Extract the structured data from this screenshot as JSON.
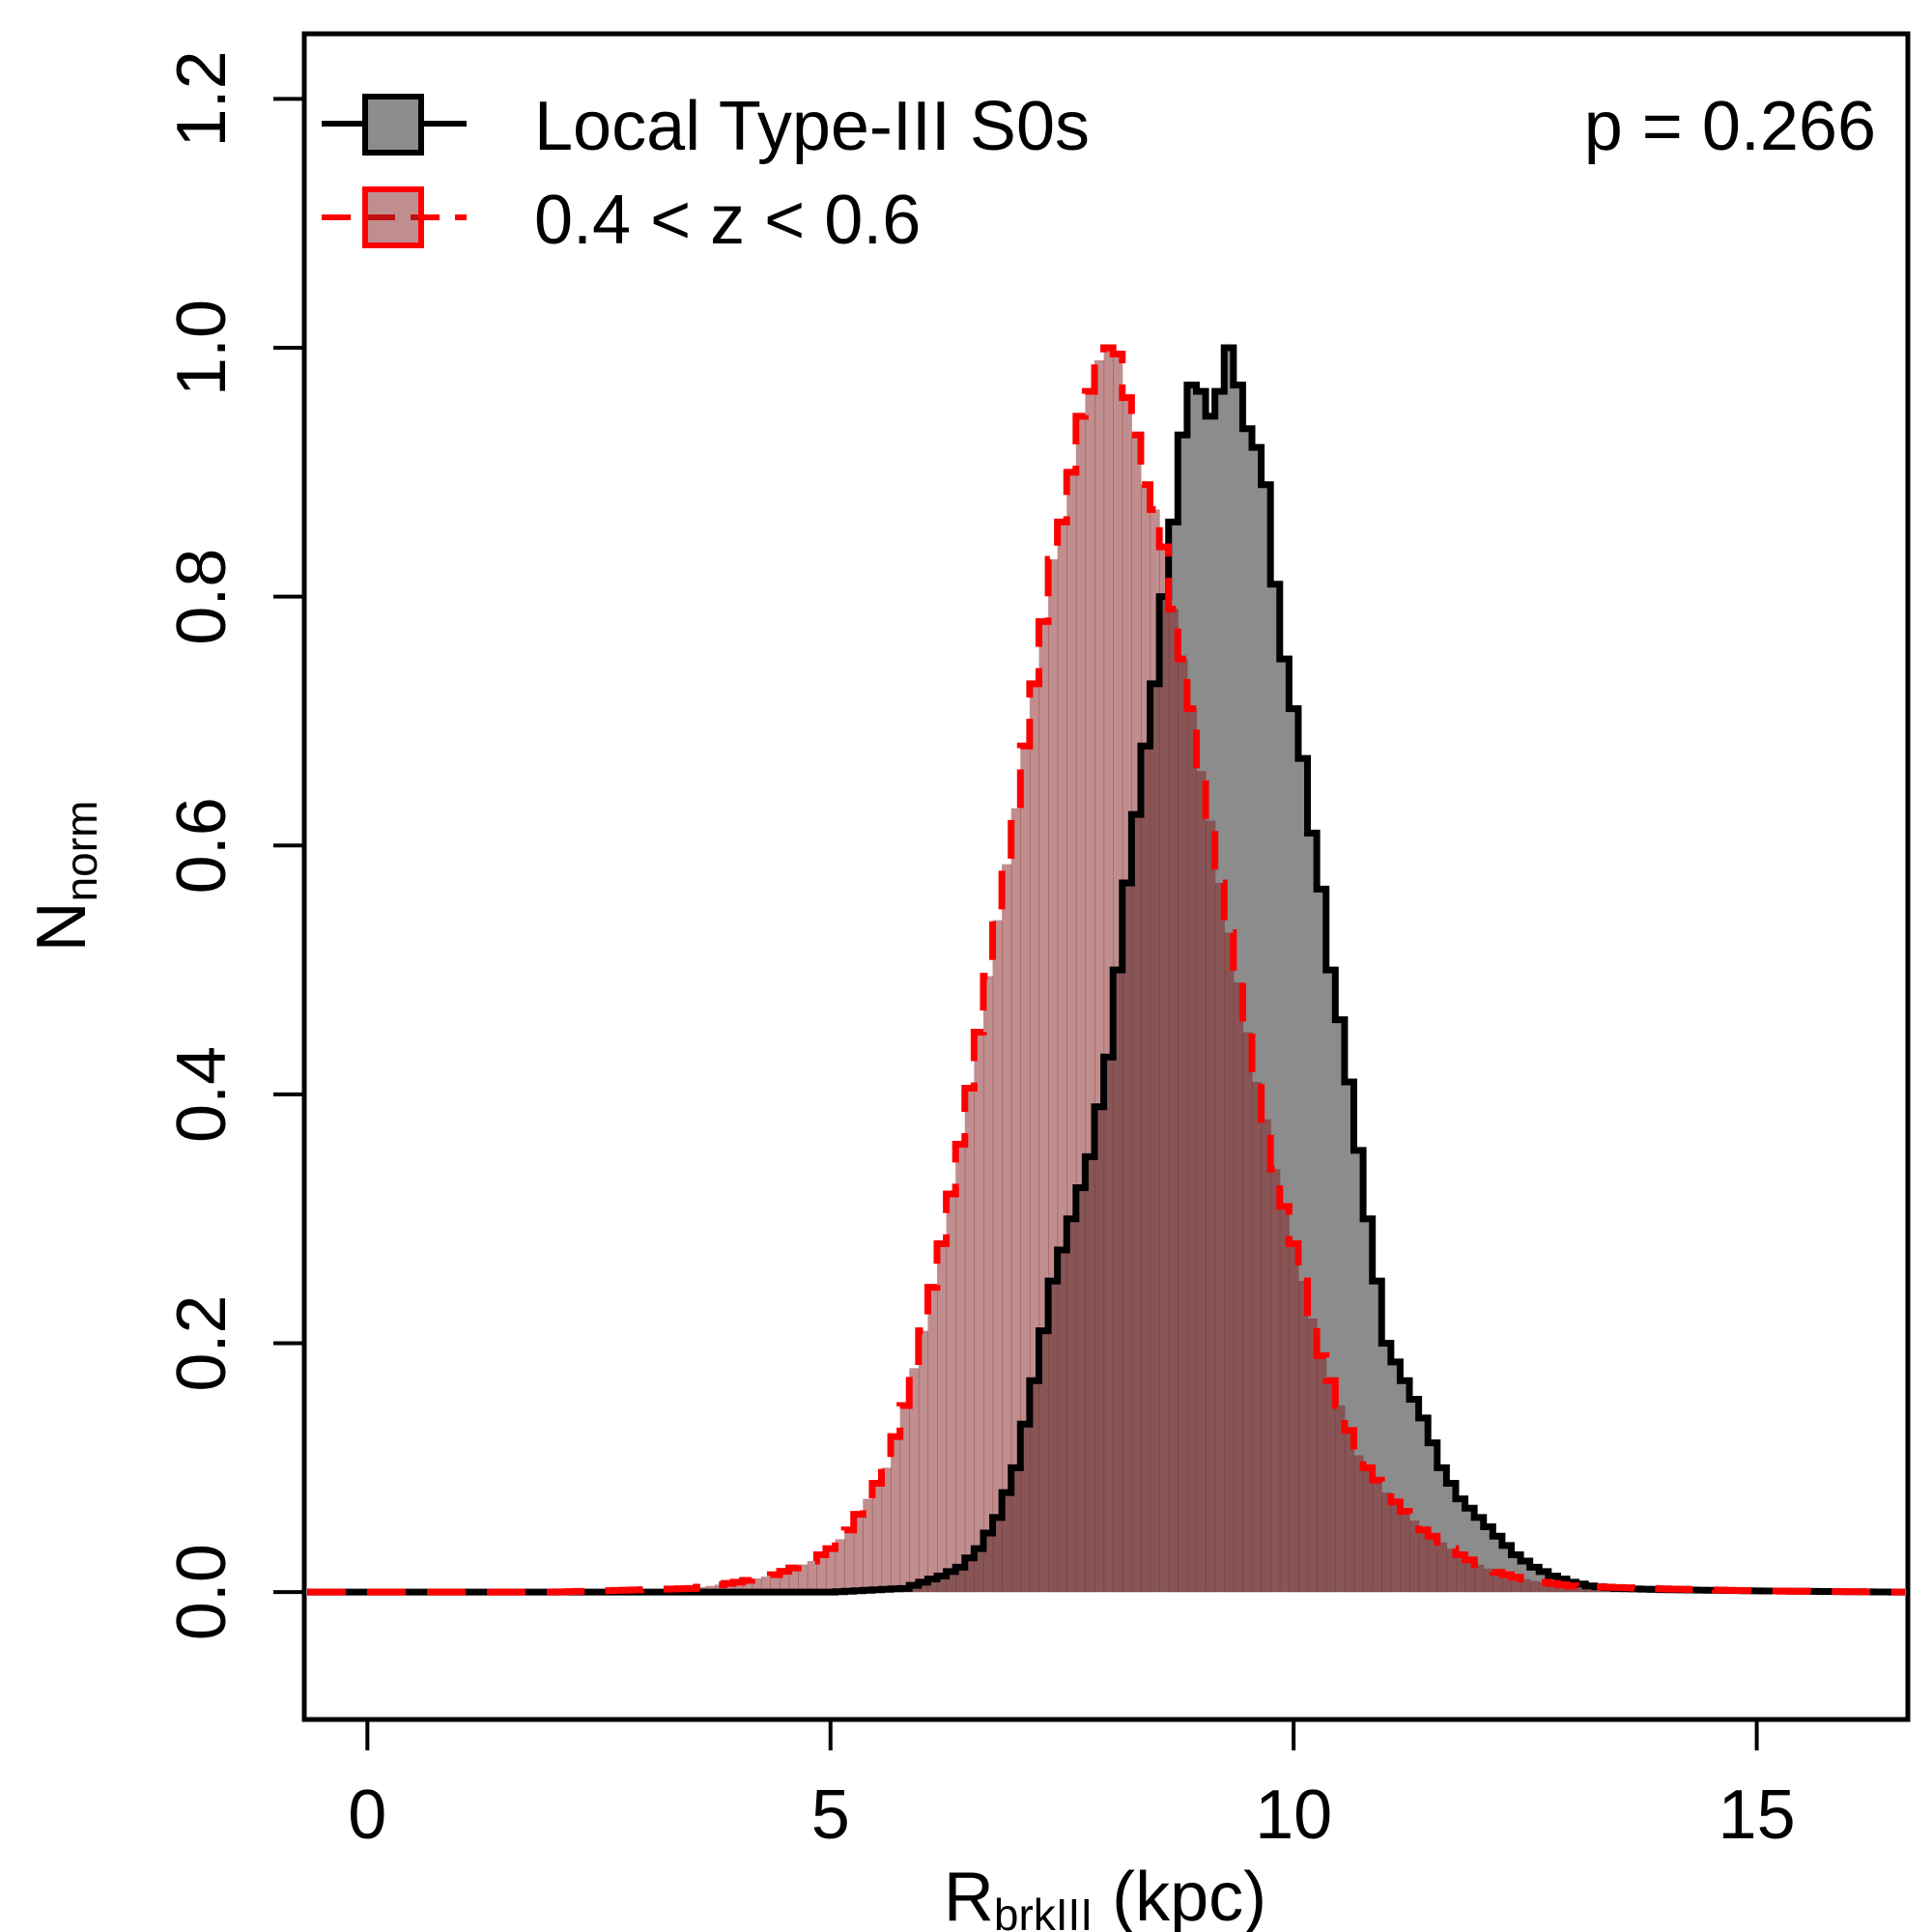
{
  "chart_data": {
    "type": "histogram",
    "xlabel": {
      "main": "R",
      "sub": "brkIII",
      "rest": " (kpc)"
    },
    "ylabel": {
      "main": "N",
      "sub": "norm"
    },
    "xlim": [
      -0.65,
      16.6
    ],
    "ylim": [
      -0.1,
      1.25
    ],
    "x_ticks": [
      0,
      5,
      10,
      15
    ],
    "y_ticks": [
      0.0,
      0.2,
      0.4,
      0.6,
      0.8,
      1.0,
      1.2
    ],
    "x_tick_labels": [
      "0",
      "5",
      "10",
      "15"
    ],
    "y_tick_labels": [
      "0.0",
      "0.2",
      "0.4",
      "0.6",
      "0.8",
      "1.0",
      "1.2"
    ],
    "annotation": "p = 0.266",
    "legend_position": "top-left",
    "bin_width": 0.1,
    "series": [
      {
        "name": "Local Type-III S0s",
        "line_color": "#000000",
        "fill_color": "#8c8c8c",
        "line_style": "solid",
        "points": [
          [
            -0.65,
            0.0
          ],
          [
            5.0,
            0.0
          ],
          [
            5.8,
            0.003
          ],
          [
            6.0,
            0.008
          ],
          [
            6.2,
            0.013
          ],
          [
            6.4,
            0.02
          ],
          [
            6.6,
            0.035
          ],
          [
            6.8,
            0.06
          ],
          [
            7.0,
            0.1
          ],
          [
            7.2,
            0.17
          ],
          [
            7.4,
            0.25
          ],
          [
            7.6,
            0.3
          ],
          [
            7.8,
            0.35
          ],
          [
            8.0,
            0.43
          ],
          [
            8.2,
            0.57
          ],
          [
            8.4,
            0.68
          ],
          [
            8.5,
            0.73
          ],
          [
            8.6,
            0.8
          ],
          [
            8.7,
            0.86
          ],
          [
            8.8,
            0.93
          ],
          [
            8.9,
            0.97
          ],
          [
            9.0,
            0.965
          ],
          [
            9.1,
            0.945
          ],
          [
            9.2,
            0.965
          ],
          [
            9.3,
            1.0
          ],
          [
            9.4,
            0.97
          ],
          [
            9.5,
            0.935
          ],
          [
            9.6,
            0.92
          ],
          [
            9.7,
            0.89
          ],
          [
            9.8,
            0.81
          ],
          [
            9.9,
            0.75
          ],
          [
            10.0,
            0.71
          ],
          [
            10.1,
            0.67
          ],
          [
            10.2,
            0.61
          ],
          [
            10.3,
            0.565
          ],
          [
            10.4,
            0.5
          ],
          [
            10.5,
            0.46
          ],
          [
            10.6,
            0.41
          ],
          [
            10.7,
            0.355
          ],
          [
            10.8,
            0.3
          ],
          [
            10.9,
            0.25
          ],
          [
            11.0,
            0.2
          ],
          [
            11.2,
            0.17
          ],
          [
            11.4,
            0.14
          ],
          [
            11.6,
            0.1
          ],
          [
            11.8,
            0.075
          ],
          [
            12.0,
            0.06
          ],
          [
            12.2,
            0.045
          ],
          [
            12.4,
            0.03
          ],
          [
            12.6,
            0.02
          ],
          [
            12.8,
            0.013
          ],
          [
            13.0,
            0.008
          ],
          [
            13.2,
            0.005
          ],
          [
            13.5,
            0.003
          ],
          [
            14.0,
            0.002
          ],
          [
            15.0,
            0.001
          ],
          [
            16.6,
            0.0
          ]
        ]
      },
      {
        "name": "0.4 < z < 0.6",
        "line_color": "#ff0000",
        "fill_color": "rgba(130,30,30,0.5)",
        "line_style": "dashed",
        "points": [
          [
            -0.65,
            0.0
          ],
          [
            2.0,
            0.0
          ],
          [
            3.0,
            0.002
          ],
          [
            3.5,
            0.003
          ],
          [
            4.0,
            0.008
          ],
          [
            4.4,
            0.014
          ],
          [
            4.8,
            0.025
          ],
          [
            5.0,
            0.035
          ],
          [
            5.2,
            0.05
          ],
          [
            5.4,
            0.075
          ],
          [
            5.6,
            0.1
          ],
          [
            5.8,
            0.15
          ],
          [
            6.0,
            0.21
          ],
          [
            6.2,
            0.28
          ],
          [
            6.4,
            0.36
          ],
          [
            6.6,
            0.45
          ],
          [
            6.8,
            0.54
          ],
          [
            7.0,
            0.63
          ],
          [
            7.2,
            0.73
          ],
          [
            7.4,
            0.83
          ],
          [
            7.5,
            0.86
          ],
          [
            7.6,
            0.9
          ],
          [
            7.7,
            0.945
          ],
          [
            7.8,
            0.965
          ],
          [
            7.9,
            0.99
          ],
          [
            8.0,
            1.0
          ],
          [
            8.1,
            0.995
          ],
          [
            8.2,
            0.96
          ],
          [
            8.3,
            0.93
          ],
          [
            8.4,
            0.89
          ],
          [
            8.5,
            0.87
          ],
          [
            8.6,
            0.84
          ],
          [
            8.7,
            0.79
          ],
          [
            8.8,
            0.75
          ],
          [
            8.9,
            0.71
          ],
          [
            9.0,
            0.66
          ],
          [
            9.1,
            0.62
          ],
          [
            9.2,
            0.57
          ],
          [
            9.3,
            0.53
          ],
          [
            9.4,
            0.49
          ],
          [
            9.5,
            0.45
          ],
          [
            9.6,
            0.41
          ],
          [
            9.7,
            0.38
          ],
          [
            9.8,
            0.34
          ],
          [
            9.9,
            0.31
          ],
          [
            10.0,
            0.28
          ],
          [
            10.1,
            0.25
          ],
          [
            10.2,
            0.22
          ],
          [
            10.3,
            0.19
          ],
          [
            10.4,
            0.17
          ],
          [
            10.5,
            0.15
          ],
          [
            10.6,
            0.13
          ],
          [
            10.7,
            0.11
          ],
          [
            10.8,
            0.1
          ],
          [
            10.9,
            0.09
          ],
          [
            11.0,
            0.08
          ],
          [
            11.2,
            0.065
          ],
          [
            11.4,
            0.05
          ],
          [
            11.6,
            0.04
          ],
          [
            11.8,
            0.03
          ],
          [
            12.0,
            0.022
          ],
          [
            12.2,
            0.016
          ],
          [
            12.4,
            0.012
          ],
          [
            12.6,
            0.009
          ],
          [
            12.8,
            0.007
          ],
          [
            13.0,
            0.005
          ],
          [
            13.4,
            0.004
          ],
          [
            13.8,
            0.003
          ],
          [
            14.4,
            0.002
          ],
          [
            15.0,
            0.001
          ],
          [
            16.6,
            0.0
          ]
        ]
      }
    ]
  }
}
